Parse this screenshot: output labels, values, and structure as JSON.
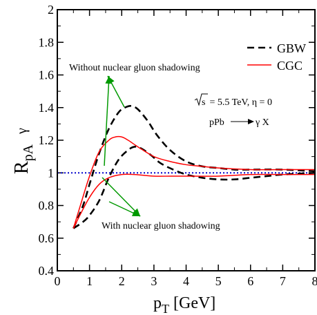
{
  "chart_data": {
    "type": "line",
    "xlabel": "p",
    "xlabel_sub": "T",
    "xlabel_unit": "[GeV]",
    "ylabel": "R",
    "ylabel_sup": "γ",
    "ylabel_sub": "pA",
    "xlim": [
      0,
      8
    ],
    "ylim": [
      0.4,
      2
    ],
    "x_ticks": [
      0,
      1,
      2,
      3,
      4,
      5,
      6,
      7,
      8
    ],
    "y_ticks": [
      0.4,
      0.6,
      0.8,
      1,
      1.2,
      1.4,
      1.6,
      1.8,
      2
    ],
    "legend_position": "top-right",
    "legend": [
      {
        "label": "GBW",
        "color": "#000000",
        "dash": "dashed"
      },
      {
        "label": "CGC",
        "color": "#ff0000",
        "dash": "solid"
      }
    ],
    "reference_line": {
      "y": 1,
      "color": "#0000cc",
      "style": "dotted"
    },
    "annotations": {
      "sqrt_s": "s",
      "energy_text": " = 5.5 TeV, η = 0",
      "process_left": "pPb",
      "process_right": "γ X",
      "without_shadowing": "Without nuclear gluon shadowing",
      "with_shadowing": "With nuclear gluon shadowing"
    },
    "arrow_color": "#009900",
    "series": [
      {
        "name": "GBW",
        "group": "without shadowing",
        "color": "#000000",
        "dash": "dashed",
        "x": [
          0.5,
          0.8,
          1.0,
          1.3,
          1.6,
          1.9,
          2.1,
          2.3,
          2.5,
          2.8,
          3.1,
          3.5,
          4.0,
          4.5,
          5.0,
          5.5,
          6.0,
          7.0,
          8.0
        ],
        "y": [
          0.66,
          0.8,
          0.93,
          1.12,
          1.27,
          1.37,
          1.4,
          1.41,
          1.39,
          1.32,
          1.23,
          1.14,
          1.07,
          1.04,
          1.03,
          1.02,
          1.02,
          1.02,
          1.01
        ]
      },
      {
        "name": "GBW",
        "group": "with shadowing",
        "color": "#000000",
        "dash": "dashed",
        "x": [
          0.5,
          0.8,
          1.0,
          1.3,
          1.6,
          1.9,
          2.2,
          2.4,
          2.6,
          2.9,
          3.2,
          3.6,
          4.0,
          4.5,
          5.0,
          5.5,
          6.0,
          6.5,
          7.0,
          8.0
        ],
        "y": [
          0.66,
          0.7,
          0.74,
          0.83,
          0.97,
          1.08,
          1.14,
          1.16,
          1.15,
          1.11,
          1.06,
          1.02,
          0.99,
          0.97,
          0.96,
          0.96,
          0.97,
          0.98,
          0.99,
          1.0
        ]
      },
      {
        "name": "CGC",
        "group": "without shadowing",
        "color": "#ff0000",
        "dash": "solid",
        "x": [
          0.5,
          0.7,
          1.0,
          1.3,
          1.6,
          1.8,
          2.0,
          2.2,
          2.5,
          3.0,
          3.5,
          4.0,
          4.5,
          5.0,
          6.0,
          7.0,
          8.0
        ],
        "y": [
          0.66,
          0.79,
          0.98,
          1.13,
          1.2,
          1.22,
          1.22,
          1.2,
          1.16,
          1.1,
          1.07,
          1.05,
          1.04,
          1.03,
          1.02,
          1.02,
          1.02
        ]
      },
      {
        "name": "CGC",
        "group": "with shadowing",
        "color": "#ff0000",
        "dash": "solid",
        "x": [
          0.5,
          0.7,
          1.0,
          1.3,
          1.6,
          2.0,
          2.4,
          3.0,
          3.5,
          4.0,
          5.0,
          6.0,
          7.0,
          8.0
        ],
        "y": [
          0.66,
          0.74,
          0.85,
          0.93,
          0.97,
          0.99,
          0.99,
          0.98,
          0.98,
          0.98,
          0.98,
          0.99,
          0.99,
          0.99
        ]
      }
    ]
  }
}
